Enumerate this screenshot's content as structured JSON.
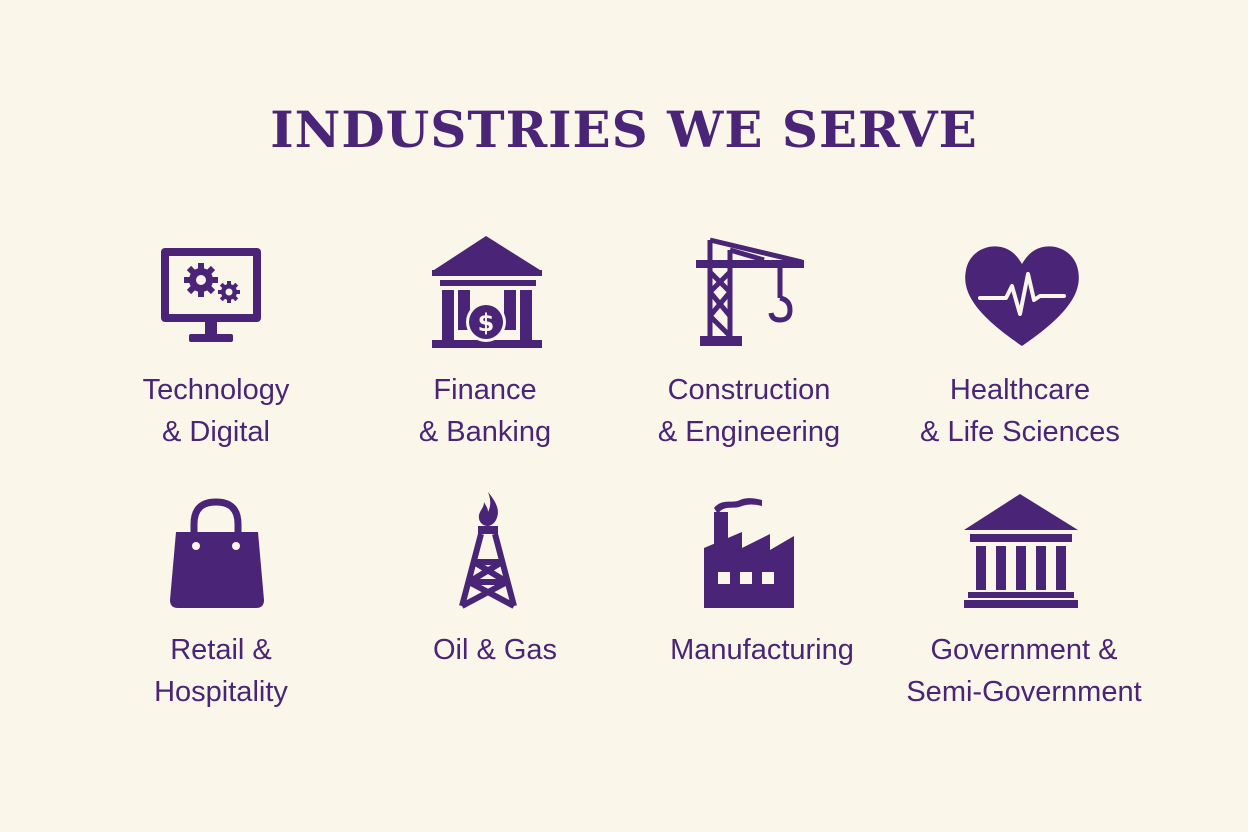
{
  "title": "INDUSTRIES WE SERVE",
  "colors": {
    "background": "#faf6e9",
    "accent": "#4a2476"
  },
  "industries": [
    {
      "icon": "monitor-gears-icon",
      "line1": "Technology",
      "line2": "& Digital"
    },
    {
      "icon": "bank-dollar-icon",
      "line1": "Finance",
      "line2": "& Banking"
    },
    {
      "icon": "crane-icon",
      "line1": "Construction",
      "line2": "& Engineering"
    },
    {
      "icon": "heart-pulse-icon",
      "line1": "Healthcare",
      "line2": "& Life Sciences"
    },
    {
      "icon": "shopping-bag-icon",
      "line1": "Retail &",
      "line2": "Hospitality"
    },
    {
      "icon": "oil-rig-flame-icon",
      "line1": "Oil & Gas",
      "line2": ""
    },
    {
      "icon": "factory-icon",
      "line1": "Manufacturing",
      "line2": ""
    },
    {
      "icon": "government-building-icon",
      "line1": "Government &",
      "line2": "Semi-Government"
    }
  ]
}
